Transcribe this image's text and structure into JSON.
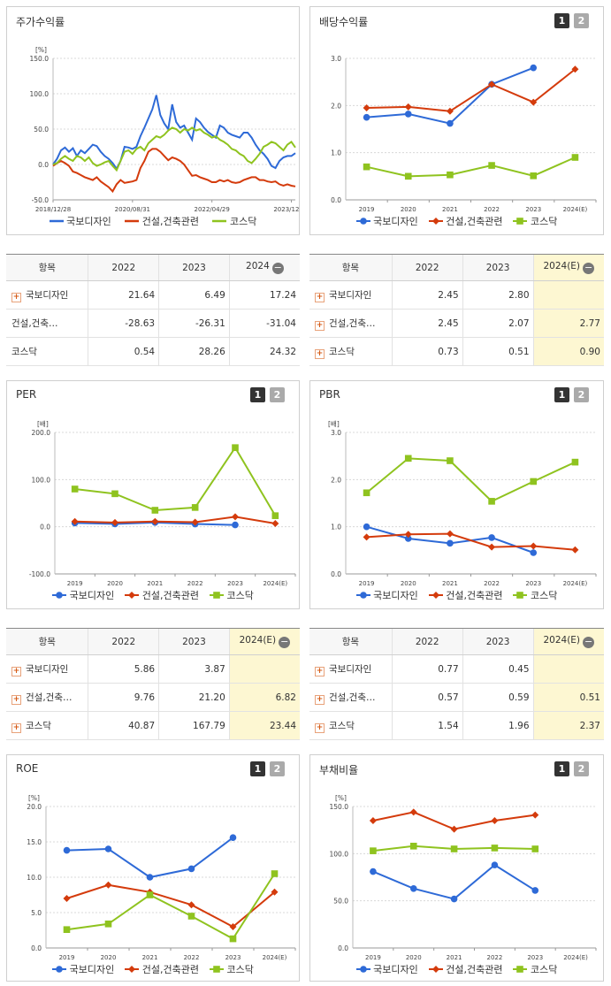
{
  "series_names": [
    "국보디자인",
    "건설,건축관련",
    "코스닥"
  ],
  "colors": {
    "s0": "#2e6ad7",
    "s1": "#d43b0c",
    "s2": "#8fc31f"
  },
  "pager": {
    "p1": "1",
    "p2": "2"
  },
  "charts": {
    "stock": {
      "title": "주가수익률",
      "unit": "[%]",
      "chart_data": {
        "type": "line",
        "title": "주가수익률",
        "ylabel": "[%]",
        "ylim": [
          -50,
          150
        ],
        "yticks": [
          "150.0",
          "100.0",
          "50.0",
          "0.0",
          "-50.0"
        ],
        "xticks": [
          "2018/12/28",
          "2020/08/31",
          "2022/04/29",
          "2023/12/28"
        ],
        "grid": true,
        "legend": "bottom",
        "series": [
          {
            "name": "국보디자인",
            "values": [
              0,
              8,
              20,
              24,
              18,
              23,
              12,
              20,
              16,
              22,
              28,
              26,
              18,
              12,
              8,
              2,
              -6,
              5,
              25,
              24,
              22,
              25,
              40,
              52,
              65,
              78,
              98,
              70,
              58,
              50,
              85,
              60,
              52,
              55,
              45,
              35,
              65,
              60,
              52,
              46,
              42,
              38,
              55,
              52,
              45,
              42,
              40,
              38,
              45,
              45,
              38,
              28,
              20,
              15,
              8,
              -2,
              -5,
              5,
              10,
              12,
              12,
              16
            ]
          },
          {
            "name": "건설,건축관련",
            "values": [
              -2,
              2,
              5,
              2,
              -2,
              -10,
              -12,
              -15,
              -18,
              -20,
              -22,
              -18,
              -24,
              -28,
              -32,
              -38,
              -28,
              -22,
              -26,
              -25,
              -24,
              -22,
              -5,
              5,
              18,
              22,
              22,
              18,
              12,
              6,
              10,
              8,
              5,
              0,
              -8,
              -16,
              -15,
              -18,
              -20,
              -22,
              -25,
              -25,
              -22,
              -24,
              -22,
              -25,
              -26,
              -25,
              -22,
              -20,
              -18,
              -18,
              -22,
              -22,
              -24,
              -25,
              -24,
              -28,
              -30,
              -28,
              -30,
              -31
            ]
          },
          {
            "name": "코스닥",
            "values": [
              0,
              2,
              8,
              12,
              8,
              5,
              12,
              10,
              5,
              10,
              2,
              -2,
              0,
              3,
              5,
              -2,
              -8,
              5,
              18,
              20,
              15,
              22,
              25,
              20,
              30,
              35,
              40,
              38,
              42,
              48,
              52,
              50,
              45,
              50,
              48,
              52,
              48,
              50,
              45,
              42,
              38,
              40,
              35,
              32,
              28,
              22,
              20,
              15,
              12,
              5,
              2,
              8,
              15,
              25,
              28,
              32,
              30,
              25,
              20,
              28,
              32,
              24
            ]
          }
        ]
      }
    },
    "dividend": {
      "title": "배당수익률",
      "chart_data": {
        "type": "line",
        "title": "배당수익률",
        "categories": [
          "2019",
          "2020",
          "2021",
          "2022",
          "2023",
          "2024(E)"
        ],
        "ylim": [
          0,
          3
        ],
        "yticks": [
          "3.0",
          "2.0",
          "1.0",
          "0.0"
        ],
        "grid": true,
        "legend": "bottom",
        "series": [
          {
            "name": "국보디자인",
            "values": [
              1.75,
              1.82,
              1.62,
              2.45,
              2.8,
              null
            ]
          },
          {
            "name": "건설,건축관련",
            "values": [
              1.95,
              1.97,
              1.88,
              2.45,
              2.07,
              2.77
            ]
          },
          {
            "name": "코스닥",
            "values": [
              0.7,
              0.5,
              0.53,
              0.73,
              0.51,
              0.9
            ]
          }
        ]
      }
    },
    "per": {
      "title": "PER",
      "unit": "[배]",
      "chart_data": {
        "type": "line",
        "title": "PER",
        "ylabel": "[배]",
        "categories": [
          "2019",
          "2020",
          "2021",
          "2022",
          "2023",
          "2024(E)"
        ],
        "ylim": [
          -100,
          200
        ],
        "yticks": [
          "200.0",
          "100.0",
          "0.0",
          "-100.0"
        ],
        "grid": true,
        "legend": "bottom",
        "series": [
          {
            "name": "국보디자인",
            "values": [
              8,
              6,
              9,
              5.86,
              3.87,
              null
            ]
          },
          {
            "name": "건설,건축관련",
            "values": [
              11,
              9,
              11,
              9.76,
              21.2,
              6.82
            ]
          },
          {
            "name": "코스닥",
            "values": [
              80,
              70,
              35,
              40.87,
              167.79,
              23.44
            ]
          }
        ]
      }
    },
    "pbr": {
      "title": "PBR",
      "unit": "[배]",
      "chart_data": {
        "type": "line",
        "title": "PBR",
        "ylabel": "[배]",
        "categories": [
          "2019",
          "2020",
          "2021",
          "2022",
          "2023",
          "2024(E)"
        ],
        "ylim": [
          0,
          3
        ],
        "yticks": [
          "3.0",
          "2.0",
          "1.0",
          "0.0"
        ],
        "grid": true,
        "legend": "bottom",
        "series": [
          {
            "name": "국보디자인",
            "values": [
              1.0,
              0.75,
              0.65,
              0.77,
              0.45,
              null
            ]
          },
          {
            "name": "건설,건축관련",
            "values": [
              0.78,
              0.84,
              0.85,
              0.57,
              0.59,
              0.51
            ]
          },
          {
            "name": "코스닥",
            "values": [
              1.72,
              2.45,
              2.4,
              1.54,
              1.96,
              2.37
            ]
          }
        ]
      }
    },
    "roe": {
      "title": "ROE",
      "unit": "[%]",
      "chart_data": {
        "type": "line",
        "title": "ROE",
        "ylabel": "[%]",
        "categories": [
          "2019",
          "2020",
          "2021",
          "2022",
          "2023",
          "2024(E)"
        ],
        "ylim": [
          0,
          20
        ],
        "yticks": [
          "20.0",
          "15.0",
          "10.0",
          "5.0",
          "0.0"
        ],
        "grid": true,
        "legend": "bottom",
        "series": [
          {
            "name": "국보디자인",
            "values": [
              13.8,
              14.0,
              10.0,
              11.2,
              15.6,
              null
            ]
          },
          {
            "name": "건설,건축관련",
            "values": [
              7.0,
              8.9,
              7.9,
              6.1,
              3.0,
              7.9
            ]
          },
          {
            "name": "코스닥",
            "values": [
              2.6,
              3.4,
              7.5,
              4.5,
              1.3,
              10.5
            ]
          }
        ]
      }
    },
    "debt": {
      "title": "부채비율",
      "unit": "[%]",
      "chart_data": {
        "type": "line",
        "title": "부채비율",
        "ylabel": "[%]",
        "categories": [
          "2019",
          "2020",
          "2021",
          "2022",
          "2023",
          "2024(E)"
        ],
        "ylim": [
          0,
          150
        ],
        "yticks": [
          "150.0",
          "100.0",
          "50.0",
          "0.0"
        ],
        "grid": true,
        "legend": "bottom",
        "series": [
          {
            "name": "국보디자인",
            "values": [
              81,
              63,
              52,
              88,
              61,
              null
            ]
          },
          {
            "name": "건설,건축관련",
            "values": [
              135,
              144,
              126,
              135,
              141,
              null
            ]
          },
          {
            "name": "코스닥",
            "values": [
              103,
              108,
              105,
              106,
              105,
              null
            ]
          }
        ]
      }
    }
  },
  "tables": {
    "stock": {
      "headers": [
        "항목",
        "2022",
        "2023",
        "2024"
      ],
      "rows": [
        {
          "label": "국보디자인",
          "values": [
            "21.64",
            "6.49",
            "17.24"
          ]
        },
        {
          "label": "건설,건축…",
          "values": [
            "-28.63",
            "-26.31",
            "-31.04"
          ]
        },
        {
          "label": "코스닥",
          "values": [
            "0.54",
            "28.26",
            "24.32"
          ]
        }
      ]
    },
    "dividend": {
      "headers": [
        "항목",
        "2022",
        "2023",
        "2024(E)"
      ],
      "rows": [
        {
          "label": "국보디자인",
          "values": [
            "2.45",
            "2.80",
            ""
          ]
        },
        {
          "label": "건설,건축…",
          "values": [
            "2.45",
            "2.07",
            "2.77"
          ]
        },
        {
          "label": "코스닥",
          "values": [
            "0.73",
            "0.51",
            "0.90"
          ]
        }
      ]
    },
    "per": {
      "headers": [
        "항목",
        "2022",
        "2023",
        "2024(E)"
      ],
      "rows": [
        {
          "label": "국보디자인",
          "values": [
            "5.86",
            "3.87",
            ""
          ]
        },
        {
          "label": "건설,건축…",
          "values": [
            "9.76",
            "21.20",
            "6.82"
          ]
        },
        {
          "label": "코스닥",
          "values": [
            "40.87",
            "167.79",
            "23.44"
          ]
        }
      ]
    },
    "pbr": {
      "headers": [
        "항목",
        "2022",
        "2023",
        "2024(E)"
      ],
      "rows": [
        {
          "label": "국보디자인",
          "values": [
            "0.77",
            "0.45",
            ""
          ]
        },
        {
          "label": "건설,건축…",
          "values": [
            "0.57",
            "0.59",
            "0.51"
          ]
        },
        {
          "label": "코스닥",
          "values": [
            "1.54",
            "1.96",
            "2.37"
          ]
        }
      ]
    }
  }
}
